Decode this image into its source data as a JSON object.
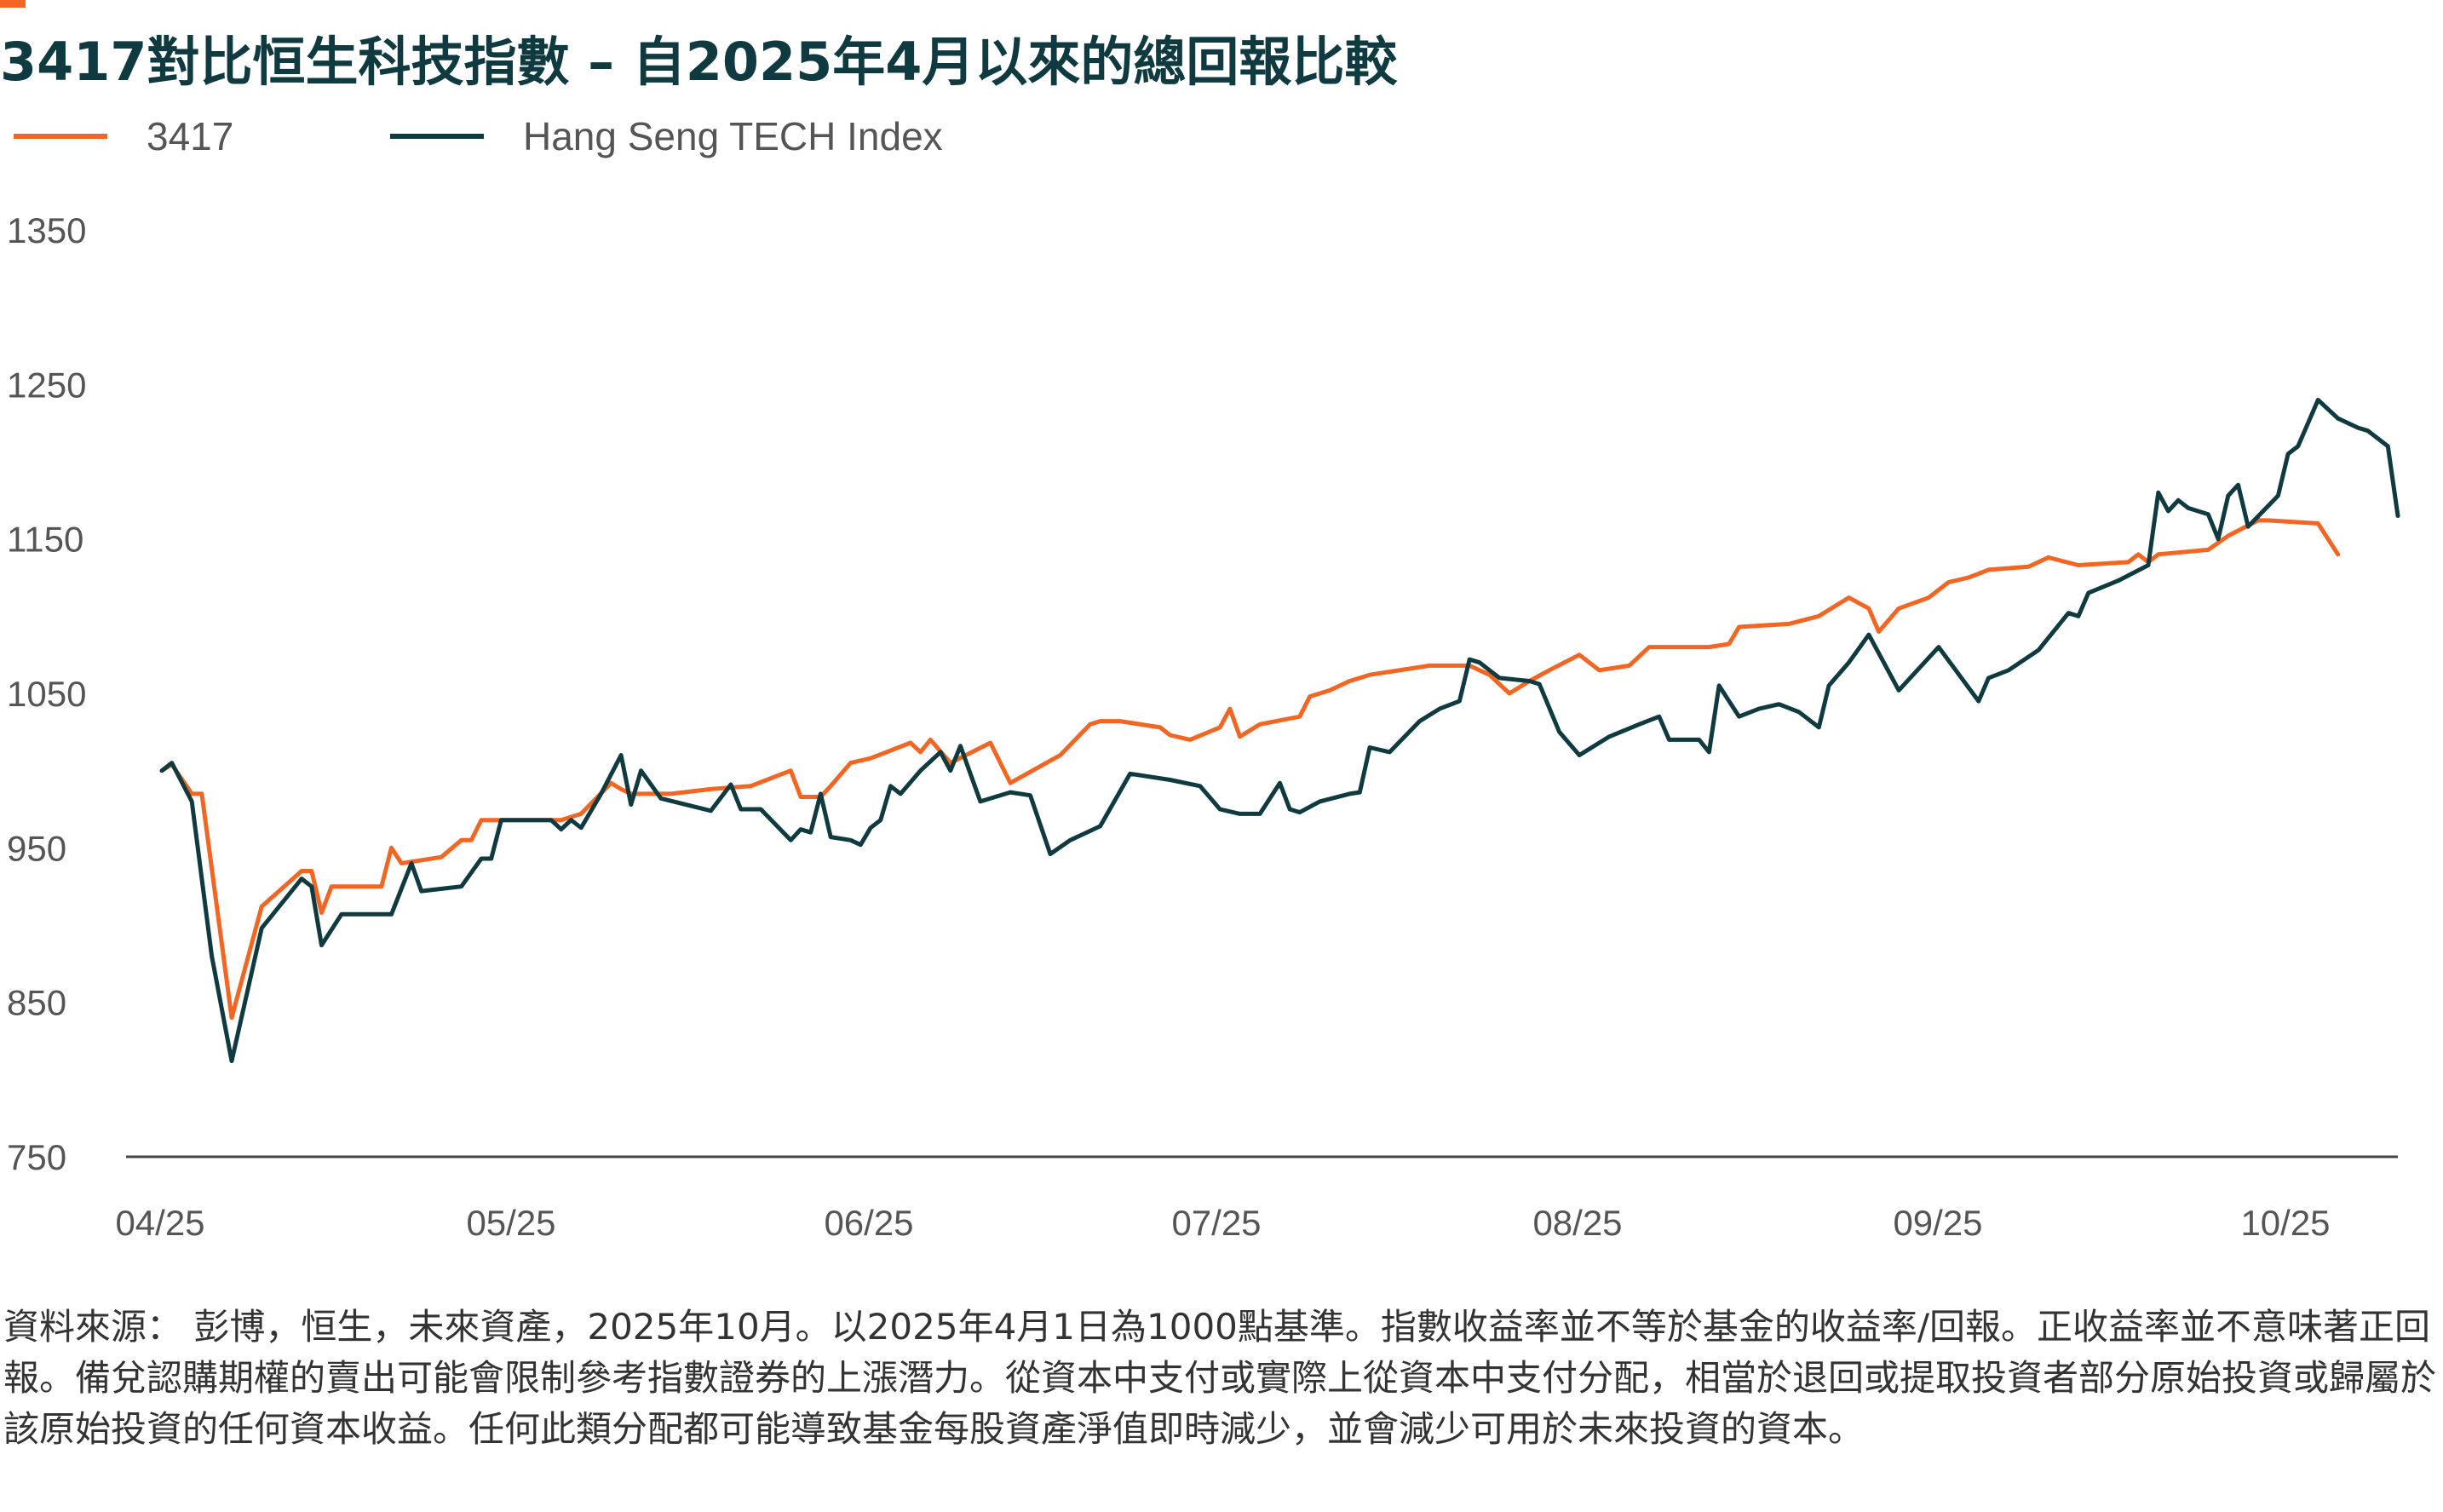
{
  "colors": {
    "series_3417": "#f26522",
    "series_hstech": "#0f3a3f",
    "accent": "#f26522",
    "axis": "#444444",
    "text": "#555555"
  },
  "chart_data": {
    "type": "line",
    "title": "3417對比恒生科技指數 – 自2025年4月以來的總回報比較",
    "ylim": [
      750,
      1350
    ],
    "yticks": [
      "1350",
      "1250",
      "1150",
      "1050",
      "950",
      "850",
      "750"
    ],
    "xticks": [
      "04/25",
      "05/25",
      "06/25",
      "07/25",
      "08/25",
      "09/25",
      "10/25"
    ],
    "grid": false,
    "legend_position": "top-left",
    "series": [
      {
        "name": "3417",
        "color": "#f26522",
        "points": [
          [
            0,
            1000
          ],
          [
            1,
            1004
          ],
          [
            3,
            985
          ],
          [
            4,
            985
          ],
          [
            7,
            840
          ],
          [
            10,
            912
          ],
          [
            14,
            935
          ],
          [
            15,
            935
          ],
          [
            16,
            908
          ],
          [
            17,
            925
          ],
          [
            22,
            925
          ],
          [
            23,
            950
          ],
          [
            24,
            940
          ],
          [
            28,
            944
          ],
          [
            30,
            955
          ],
          [
            31,
            955
          ],
          [
            32,
            968
          ],
          [
            40,
            968
          ],
          [
            42,
            972
          ],
          [
            45,
            992
          ],
          [
            46,
            988
          ],
          [
            47,
            985
          ],
          [
            51,
            985
          ],
          [
            55,
            988
          ],
          [
            59,
            990
          ],
          [
            63,
            1000
          ],
          [
            64,
            983
          ],
          [
            66,
            983
          ],
          [
            67,
            990
          ],
          [
            69,
            1005
          ],
          [
            71,
            1008
          ],
          [
            75,
            1018
          ],
          [
            76,
            1012
          ],
          [
            77,
            1020
          ],
          [
            79,
            1005
          ],
          [
            83,
            1018
          ],
          [
            85,
            992
          ],
          [
            90,
            1010
          ],
          [
            93,
            1030
          ],
          [
            94,
            1032
          ],
          [
            96,
            1032
          ],
          [
            100,
            1028
          ],
          [
            101,
            1023
          ],
          [
            103,
            1020
          ],
          [
            106,
            1028
          ],
          [
            107,
            1040
          ],
          [
            108,
            1022
          ],
          [
            110,
            1030
          ],
          [
            114,
            1035
          ],
          [
            115,
            1048
          ],
          [
            117,
            1052
          ],
          [
            119,
            1058
          ],
          [
            121,
            1062
          ],
          [
            127,
            1068
          ],
          [
            131,
            1068
          ],
          [
            133,
            1062
          ],
          [
            135,
            1050
          ],
          [
            137,
            1058
          ],
          [
            139,
            1065
          ],
          [
            142,
            1075
          ],
          [
            144,
            1065
          ],
          [
            147,
            1068
          ],
          [
            149,
            1080
          ],
          [
            155,
            1080
          ],
          [
            157,
            1082
          ],
          [
            158,
            1093
          ],
          [
            163,
            1095
          ],
          [
            166,
            1100
          ],
          [
            168,
            1108
          ],
          [
            169,
            1112
          ],
          [
            171,
            1105
          ],
          [
            172,
            1090
          ],
          [
            174,
            1105
          ],
          [
            177,
            1112
          ],
          [
            179,
            1122
          ],
          [
            181,
            1125
          ],
          [
            183,
            1130
          ],
          [
            187,
            1132
          ],
          [
            189,
            1138
          ],
          [
            192,
            1133
          ],
          [
            197,
            1135
          ],
          [
            198,
            1140
          ],
          [
            199,
            1135
          ],
          [
            200,
            1140
          ],
          [
            205,
            1143
          ],
          [
            207,
            1152
          ],
          [
            210,
            1162
          ],
          [
            211,
            1162
          ],
          [
            216,
            1160
          ],
          [
            218,
            1140
          ]
        ]
      },
      {
        "name": "Hang Seng TECH Index",
        "color": "#0f3a3f",
        "points": [
          [
            0,
            1000
          ],
          [
            1,
            1005
          ],
          [
            3,
            980
          ],
          [
            5,
            880
          ],
          [
            7,
            812
          ],
          [
            10,
            898
          ],
          [
            14,
            930
          ],
          [
            15,
            925
          ],
          [
            16,
            887
          ],
          [
            18,
            907
          ],
          [
            23,
            907
          ],
          [
            25,
            940
          ],
          [
            26,
            922
          ],
          [
            30,
            925
          ],
          [
            32,
            943
          ],
          [
            33,
            943
          ],
          [
            34,
            968
          ],
          [
            39,
            968
          ],
          [
            40,
            962
          ],
          [
            41,
            968
          ],
          [
            42,
            963
          ],
          [
            44,
            985
          ],
          [
            46,
            1010
          ],
          [
            47,
            978
          ],
          [
            48,
            1000
          ],
          [
            50,
            982
          ],
          [
            55,
            974
          ],
          [
            57,
            991
          ],
          [
            58,
            975
          ],
          [
            60,
            975
          ],
          [
            63,
            955
          ],
          [
            64,
            962
          ],
          [
            65,
            960
          ],
          [
            66,
            985
          ],
          [
            67,
            957
          ],
          [
            69,
            955
          ],
          [
            70,
            952
          ],
          [
            71,
            963
          ],
          [
            72,
            968
          ],
          [
            73,
            990
          ],
          [
            74,
            985
          ],
          [
            76,
            1000
          ],
          [
            78,
            1012
          ],
          [
            79,
            1000
          ],
          [
            80,
            1016
          ],
          [
            82,
            980
          ],
          [
            85,
            986
          ],
          [
            87,
            984
          ],
          [
            89,
            946
          ],
          [
            91,
            955
          ],
          [
            94,
            964
          ],
          [
            97,
            998
          ],
          [
            101,
            994
          ],
          [
            104,
            990
          ],
          [
            106,
            975
          ],
          [
            108,
            972
          ],
          [
            110,
            972
          ],
          [
            112,
            992
          ],
          [
            113,
            975
          ],
          [
            114,
            973
          ],
          [
            116,
            980
          ],
          [
            119,
            985
          ],
          [
            120,
            986
          ],
          [
            121,
            1015
          ],
          [
            123,
            1012
          ],
          [
            126,
            1032
          ],
          [
            128,
            1040
          ],
          [
            130,
            1045
          ],
          [
            131,
            1072
          ],
          [
            132,
            1070
          ],
          [
            133,
            1065
          ],
          [
            134,
            1060
          ],
          [
            137,
            1058
          ],
          [
            138,
            1056
          ],
          [
            140,
            1025
          ],
          [
            142,
            1010
          ],
          [
            145,
            1022
          ],
          [
            148,
            1030
          ],
          [
            150,
            1035
          ],
          [
            151,
            1020
          ],
          [
            154,
            1020
          ],
          [
            155,
            1012
          ],
          [
            156,
            1055
          ],
          [
            158,
            1035
          ],
          [
            160,
            1040
          ],
          [
            162,
            1043
          ],
          [
            164,
            1038
          ],
          [
            166,
            1028
          ],
          [
            167,
            1055
          ],
          [
            169,
            1070
          ],
          [
            171,
            1088
          ],
          [
            174,
            1052
          ],
          [
            178,
            1080
          ],
          [
            182,
            1045
          ],
          [
            183,
            1060
          ],
          [
            185,
            1065
          ],
          [
            188,
            1078
          ],
          [
            191,
            1102
          ],
          [
            192,
            1100
          ],
          [
            193,
            1115
          ],
          [
            196,
            1123
          ],
          [
            199,
            1133
          ],
          [
            200,
            1180
          ],
          [
            201,
            1168
          ],
          [
            202,
            1175
          ],
          [
            203,
            1170
          ],
          [
            205,
            1166
          ],
          [
            206,
            1150
          ],
          [
            207,
            1178
          ],
          [
            208,
            1185
          ],
          [
            209,
            1158
          ],
          [
            212,
            1178
          ],
          [
            213,
            1205
          ],
          [
            214,
            1210
          ],
          [
            216,
            1240
          ],
          [
            218,
            1228
          ],
          [
            220,
            1222
          ],
          [
            221,
            1220
          ],
          [
            223,
            1210
          ],
          [
            224,
            1165
          ]
        ]
      }
    ]
  },
  "legend": {
    "items": [
      {
        "label": "3417"
      },
      {
        "label": "Hang Seng TECH Index"
      }
    ]
  },
  "source_note": "資料來源： 彭博，恒生，未來資產，2025年10月。以2025年4月1日為1000點基準。指數收益率並不等於基金的收益率/回報。正收益率並不意味著正回報。備兌認購期權的賣出可能會限制參考指數證券的上漲潛力。從資本中支付或實際上從資本中支付分配，相當於退回或提取投資者部分原始投資或歸屬於該原始投資的任何資本收益。任何此類分配都可能導致基金每股資產淨值即時減少，並會減少可用於未來投資的資本。"
}
